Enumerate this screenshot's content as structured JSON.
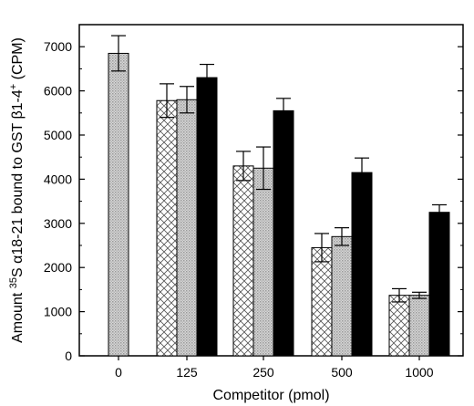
{
  "chart_data": {
    "type": "bar",
    "xlabel": "Competitor (pmol)",
    "ylabel": {
      "prefix": "Amount ",
      "sup1": "35",
      "mid": "S α18-21 bound to GST β1-4",
      "sup2": "+",
      "suffix": " (CPM)"
    },
    "ylim": [
      0,
      7500
    ],
    "yticks": [
      0,
      1000,
      2000,
      3000,
      4000,
      5000,
      6000,
      7000
    ],
    "categories": [
      "0",
      "125",
      "250",
      "500",
      "1000"
    ],
    "series": [
      {
        "fill": "dotted-gray",
        "values": [
          6850,
          5780,
          4300,
          2450,
          1370
        ],
        "errors": [
          400,
          380,
          330,
          320,
          150
        ]
      },
      {
        "fill": "crosshatch",
        "values": [
          null,
          5780,
          4300,
          2450,
          1370
        ],
        "errors": [
          null,
          380,
          330,
          320,
          150
        ]
      },
      {
        "fill": "dotted-gray",
        "values": [
          null,
          5800,
          4250,
          2700,
          1370
        ],
        "errors": [
          null,
          300,
          480,
          200,
          70
        ]
      },
      {
        "fill": "black",
        "values": [
          null,
          6300,
          5550,
          4150,
          3250
        ],
        "errors": [
          null,
          300,
          280,
          330,
          170
        ]
      }
    ],
    "colors": {
      "axis": "#000000",
      "dot_gray": "#c8c8c8",
      "solid": "#000000"
    }
  }
}
